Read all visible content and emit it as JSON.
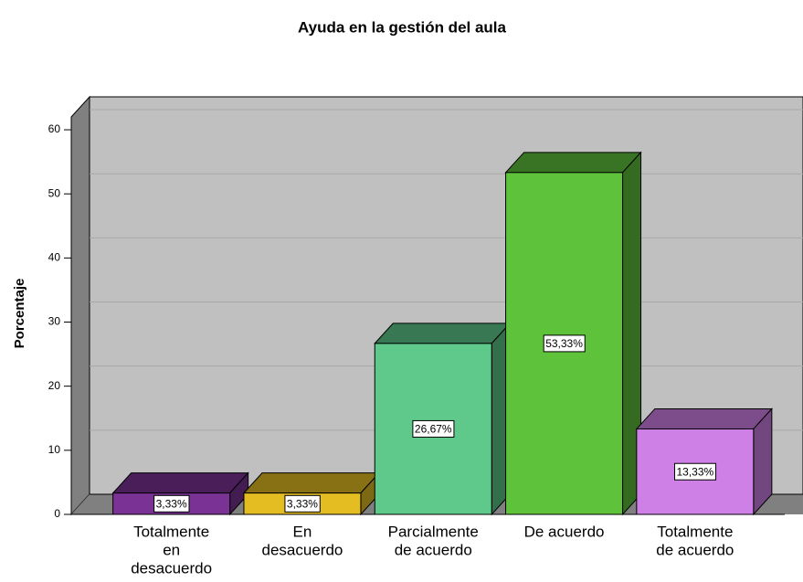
{
  "chart_data": {
    "type": "bar3d",
    "title": "Ayuda en la gestión del aula",
    "y_label": "Porcentaje",
    "categories": [
      [
        "Totalmente",
        "en",
        "desacuerdo"
      ],
      [
        "En",
        "desacuerdo"
      ],
      [
        "Parcialmente",
        "de acuerdo"
      ],
      [
        "De acuerdo"
      ],
      [
        "Totalmente",
        "de acuerdo"
      ]
    ],
    "values": [
      3.33,
      3.33,
      26.67,
      53.33,
      13.33
    ],
    "value_labels": [
      "3,33%",
      "3,33%",
      "26,67%",
      "53,33%",
      "13,33%"
    ],
    "colors": [
      "#7a3294",
      "#e3bd22",
      "#5ec98a",
      "#5ec23a",
      "#cf80e6"
    ],
    "ylim": [
      0,
      62
    ],
    "yticks": [
      0,
      10,
      20,
      30,
      40,
      50,
      60
    ],
    "grid": true
  }
}
